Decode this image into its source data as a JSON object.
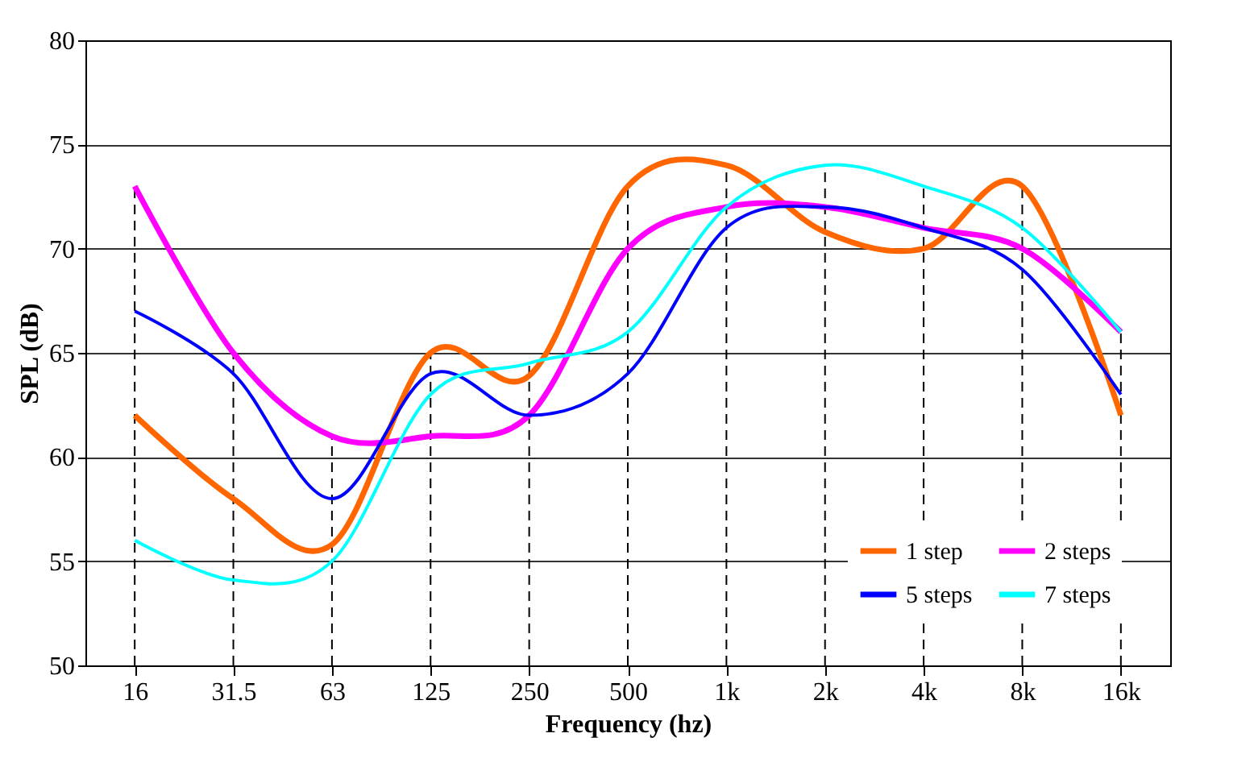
{
  "chart_data": {
    "type": "line",
    "xlabel": "Frequency (hz)",
    "ylabel": "SPL (dB)",
    "categories": [
      "16",
      "31.5",
      "63",
      "125",
      "250",
      "500",
      "1k",
      "2k",
      "4k",
      "8k",
      "16k"
    ],
    "series": [
      {
        "name": "1 step",
        "color": "#ff6600",
        "values": [
          62,
          58,
          55.8,
          65,
          63.9,
          73,
          74,
          70.8,
          70,
          73,
          62
        ]
      },
      {
        "name": "2 steps",
        "color": "#ff00ff",
        "values": [
          73,
          65,
          61,
          61,
          62,
          70,
          72,
          72,
          71,
          70,
          66
        ]
      },
      {
        "name": "5 steps",
        "color": "#0000ff",
        "values": [
          67,
          64,
          58,
          64,
          62,
          64,
          71,
          72,
          71,
          69,
          63
        ]
      },
      {
        "name": "7 steps",
        "color": "#00ffff",
        "values": [
          56,
          54.1,
          55,
          63,
          64.5,
          66,
          72,
          74,
          73,
          71,
          66
        ]
      }
    ],
    "ylim": [
      50,
      80
    ],
    "yticks": [
      50,
      55,
      60,
      65,
      70,
      75,
      80
    ],
    "grid": "y",
    "legend": "bottom right",
    "marker": "none",
    "line_style": "solid",
    "ref_lines": [
      {
        "axis": "x",
        "value": "16",
        "line_style": "dashed"
      },
      {
        "axis": "x",
        "value": "31.5",
        "line_style": "dashed"
      },
      {
        "axis": "x",
        "value": "63",
        "line_style": "dashed"
      },
      {
        "axis": "x",
        "value": "125",
        "line_style": "dashed"
      },
      {
        "axis": "x",
        "value": "250",
        "line_style": "dashed"
      },
      {
        "axis": "x",
        "value": "500",
        "line_style": "dashed"
      },
      {
        "axis": "x",
        "value": "1k",
        "line_style": "dashed"
      },
      {
        "axis": "x",
        "value": "2k",
        "line_style": "dashed"
      },
      {
        "axis": "x",
        "value": "4k",
        "line_style": "dashed"
      },
      {
        "axis": "x",
        "value": "8k",
        "line_style": "dashed"
      },
      {
        "axis": "x",
        "value": "16k",
        "line_style": "dashed"
      }
    ]
  }
}
